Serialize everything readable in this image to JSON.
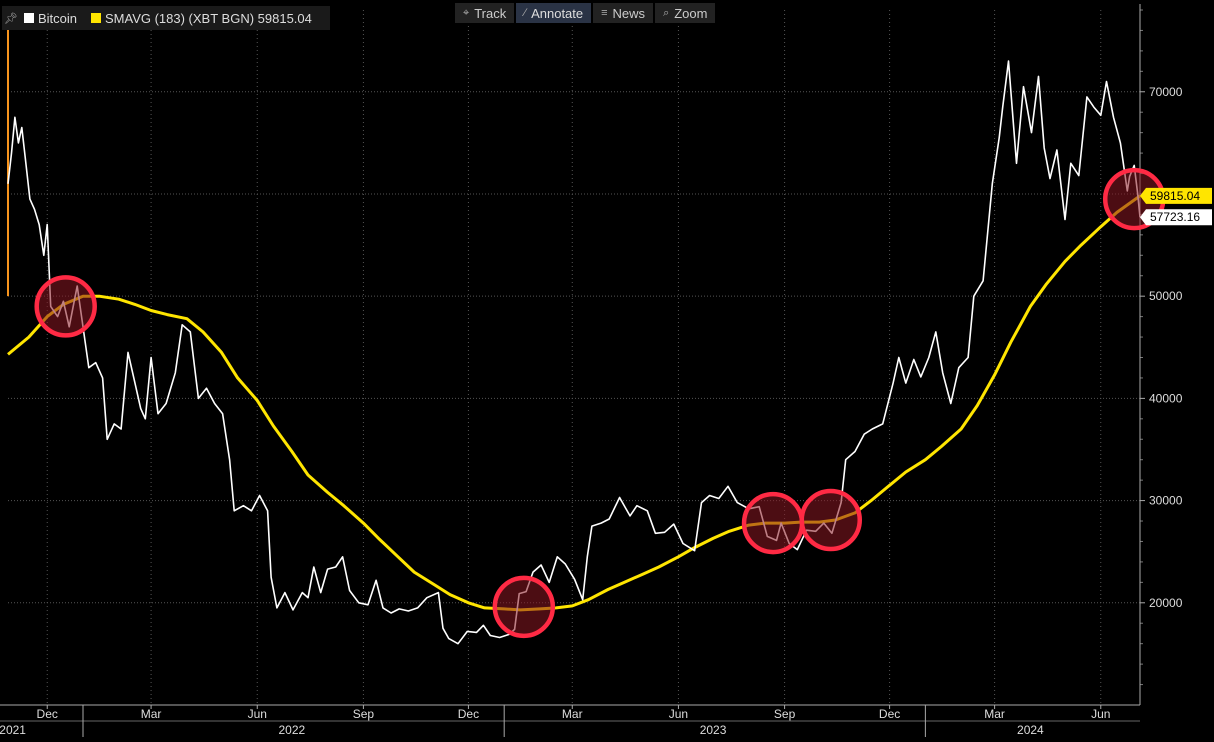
{
  "legend": {
    "series1_label": "Bitcoin",
    "series2_label": "SMAVG (183) (XBT BGN) 59815.04"
  },
  "toolbar": {
    "track": "Track",
    "annotate": "Annotate",
    "news": "News",
    "zoom": "Zoom"
  },
  "colors": {
    "background": "#000000",
    "price": "#ffffff",
    "sma": "#ffe500",
    "circle_stroke": "#ff2a44",
    "circle_fill": "#8a1822",
    "grid": "#555555"
  },
  "chart_data": {
    "type": "line",
    "y_range": [
      10000,
      78000
    ],
    "y_axis_ticks": [
      "20000",
      "30000",
      "40000",
      "50000",
      "60000",
      "70000"
    ],
    "x_range": [
      "2021-10-28",
      "2024-07-05"
    ],
    "x_month_labels": [
      {
        "date": "2021-12-01",
        "label": "Dec"
      },
      {
        "date": "2022-03-01",
        "label": "Mar"
      },
      {
        "date": "2022-06-01",
        "label": "Jun"
      },
      {
        "date": "2022-09-01",
        "label": "Sep"
      },
      {
        "date": "2022-12-01",
        "label": "Dec"
      },
      {
        "date": "2023-03-01",
        "label": "Mar"
      },
      {
        "date": "2023-06-01",
        "label": "Jun"
      },
      {
        "date": "2023-09-01",
        "label": "Sep"
      },
      {
        "date": "2023-12-01",
        "label": "Dec"
      },
      {
        "date": "2024-03-01",
        "label": "Mar"
      },
      {
        "date": "2024-06-01",
        "label": "Jun"
      }
    ],
    "x_year_labels": [
      {
        "date": "2021-11-01",
        "label": "2021"
      },
      {
        "date": "2022-07-01",
        "label": "2022"
      },
      {
        "date": "2023-07-01",
        "label": "2023"
      },
      {
        "date": "2024-04-01",
        "label": "2024"
      }
    ],
    "grid": true,
    "legend_placement": "top-left",
    "series": [
      {
        "name": "Bitcoin",
        "last_value_label": "57723.16",
        "points": [
          [
            "2021-10-28",
            61000
          ],
          [
            "2021-10-31",
            64000
          ],
          [
            "2021-11-03",
            67500
          ],
          [
            "2021-11-06",
            65000
          ],
          [
            "2021-11-09",
            66500
          ],
          [
            "2021-11-12",
            63500
          ],
          [
            "2021-11-16",
            59500
          ],
          [
            "2021-11-20",
            58500
          ],
          [
            "2021-11-24",
            57000
          ],
          [
            "2021-11-28",
            54000
          ],
          [
            "2021-12-01",
            57000
          ],
          [
            "2021-12-04",
            49000
          ],
          [
            "2021-12-10",
            48000
          ],
          [
            "2021-12-15",
            49500
          ],
          [
            "2021-12-20",
            47000
          ],
          [
            "2021-12-27",
            51000
          ],
          [
            "2022-01-01",
            47000
          ],
          [
            "2022-01-06",
            43000
          ],
          [
            "2022-01-12",
            43500
          ],
          [
            "2022-01-18",
            42000
          ],
          [
            "2022-01-22",
            36000
          ],
          [
            "2022-01-28",
            37500
          ],
          [
            "2022-02-03",
            37000
          ],
          [
            "2022-02-09",
            44500
          ],
          [
            "2022-02-14",
            42000
          ],
          [
            "2022-02-20",
            39000
          ],
          [
            "2022-02-24",
            38000
          ],
          [
            "2022-03-01",
            44000
          ],
          [
            "2022-03-07",
            38500
          ],
          [
            "2022-03-14",
            39500
          ],
          [
            "2022-03-22",
            42500
          ],
          [
            "2022-03-28",
            47200
          ],
          [
            "2022-04-04",
            46500
          ],
          [
            "2022-04-11",
            40000
          ],
          [
            "2022-04-18",
            41000
          ],
          [
            "2022-04-25",
            39500
          ],
          [
            "2022-05-02",
            38500
          ],
          [
            "2022-05-08",
            34000
          ],
          [
            "2022-05-12",
            29000
          ],
          [
            "2022-05-20",
            29500
          ],
          [
            "2022-05-27",
            29000
          ],
          [
            "2022-06-03",
            30500
          ],
          [
            "2022-06-10",
            29000
          ],
          [
            "2022-06-13",
            22500
          ],
          [
            "2022-06-18",
            19500
          ],
          [
            "2022-06-25",
            21000
          ],
          [
            "2022-07-02",
            19300
          ],
          [
            "2022-07-10",
            21000
          ],
          [
            "2022-07-15",
            20500
          ],
          [
            "2022-07-20",
            23500
          ],
          [
            "2022-07-26",
            21000
          ],
          [
            "2022-08-01",
            23300
          ],
          [
            "2022-08-08",
            23500
          ],
          [
            "2022-08-14",
            24500
          ],
          [
            "2022-08-20",
            21200
          ],
          [
            "2022-08-28",
            20000
          ],
          [
            "2022-09-05",
            19800
          ],
          [
            "2022-09-12",
            22200
          ],
          [
            "2022-09-18",
            19500
          ],
          [
            "2022-09-25",
            19000
          ],
          [
            "2022-10-02",
            19400
          ],
          [
            "2022-10-10",
            19200
          ],
          [
            "2022-10-18",
            19500
          ],
          [
            "2022-10-26",
            20500
          ],
          [
            "2022-11-05",
            21000
          ],
          [
            "2022-11-09",
            17500
          ],
          [
            "2022-11-14",
            16500
          ],
          [
            "2022-11-22",
            16000
          ],
          [
            "2022-11-30",
            17200
          ],
          [
            "2022-12-08",
            17100
          ],
          [
            "2022-12-14",
            17800
          ],
          [
            "2022-12-20",
            16800
          ],
          [
            "2022-12-28",
            16600
          ],
          [
            "2023-01-05",
            16900
          ],
          [
            "2023-01-10",
            17400
          ],
          [
            "2023-01-14",
            20900
          ],
          [
            "2023-01-20",
            21100
          ],
          [
            "2023-01-26",
            23000
          ],
          [
            "2023-02-02",
            23700
          ],
          [
            "2023-02-09",
            22000
          ],
          [
            "2023-02-16",
            24500
          ],
          [
            "2023-02-23",
            23800
          ],
          [
            "2023-03-03",
            22300
          ],
          [
            "2023-03-10",
            20300
          ],
          [
            "2023-03-14",
            24500
          ],
          [
            "2023-03-18",
            27500
          ],
          [
            "2023-03-26",
            27800
          ],
          [
            "2023-04-02",
            28200
          ],
          [
            "2023-04-11",
            30300
          ],
          [
            "2023-04-20",
            28500
          ],
          [
            "2023-04-26",
            29500
          ],
          [
            "2023-05-05",
            29000
          ],
          [
            "2023-05-12",
            26800
          ],
          [
            "2023-05-20",
            26900
          ],
          [
            "2023-05-28",
            27700
          ],
          [
            "2023-06-05",
            25800
          ],
          [
            "2023-06-15",
            25100
          ],
          [
            "2023-06-21",
            29800
          ],
          [
            "2023-06-28",
            30500
          ],
          [
            "2023-07-06",
            30200
          ],
          [
            "2023-07-14",
            31400
          ],
          [
            "2023-07-22",
            29800
          ],
          [
            "2023-08-01",
            29200
          ],
          [
            "2023-08-10",
            29400
          ],
          [
            "2023-08-17",
            26500
          ],
          [
            "2023-08-25",
            26100
          ],
          [
            "2023-08-29",
            27800
          ],
          [
            "2023-09-05",
            25800
          ],
          [
            "2023-09-12",
            25200
          ],
          [
            "2023-09-20",
            27100
          ],
          [
            "2023-09-28",
            27000
          ],
          [
            "2023-10-05",
            27800
          ],
          [
            "2023-10-12",
            26800
          ],
          [
            "2023-10-20",
            29800
          ],
          [
            "2023-10-24",
            34000
          ],
          [
            "2023-11-01",
            34800
          ],
          [
            "2023-11-09",
            36500
          ],
          [
            "2023-11-16",
            37000
          ],
          [
            "2023-11-25",
            37500
          ],
          [
            "2023-12-04",
            41500
          ],
          [
            "2023-12-09",
            44000
          ],
          [
            "2023-12-15",
            41500
          ],
          [
            "2023-12-22",
            43800
          ],
          [
            "2023-12-28",
            42100
          ],
          [
            "2024-01-04",
            44000
          ],
          [
            "2024-01-10",
            46500
          ],
          [
            "2024-01-16",
            42500
          ],
          [
            "2024-01-23",
            39500
          ],
          [
            "2024-01-30",
            43000
          ],
          [
            "2024-02-07",
            44000
          ],
          [
            "2024-02-12",
            50000
          ],
          [
            "2024-02-20",
            51500
          ],
          [
            "2024-02-28",
            61000
          ],
          [
            "2024-03-05",
            65500
          ],
          [
            "2024-03-08",
            68500
          ],
          [
            "2024-03-13",
            73000
          ],
          [
            "2024-03-20",
            63000
          ],
          [
            "2024-03-26",
            70500
          ],
          [
            "2024-04-02",
            66000
          ],
          [
            "2024-04-08",
            71500
          ],
          [
            "2024-04-13",
            64500
          ],
          [
            "2024-04-18",
            61500
          ],
          [
            "2024-04-24",
            64300
          ],
          [
            "2024-05-01",
            57500
          ],
          [
            "2024-05-06",
            63000
          ],
          [
            "2024-05-13",
            61800
          ],
          [
            "2024-05-20",
            69500
          ],
          [
            "2024-05-26",
            68500
          ],
          [
            "2024-06-01",
            67700
          ],
          [
            "2024-06-06",
            71000
          ],
          [
            "2024-06-12",
            67500
          ],
          [
            "2024-06-18",
            65000
          ],
          [
            "2024-06-24",
            60300
          ],
          [
            "2024-06-26",
            61700
          ],
          [
            "2024-06-30",
            62800
          ],
          [
            "2024-07-03",
            60000
          ],
          [
            "2024-07-05",
            57723
          ]
        ]
      },
      {
        "name": "SMAVG (183) (XBT BGN)",
        "last_value_label": "59815.04",
        "points": [
          [
            "2021-10-28",
            44300
          ],
          [
            "2021-11-15",
            46000
          ],
          [
            "2021-12-01",
            48000
          ],
          [
            "2021-12-15",
            49200
          ],
          [
            "2022-01-01",
            50000
          ],
          [
            "2022-01-15",
            50000
          ],
          [
            "2022-02-01",
            49700
          ],
          [
            "2022-02-15",
            49200
          ],
          [
            "2022-03-01",
            48600
          ],
          [
            "2022-03-15",
            48200
          ],
          [
            "2022-04-01",
            47800
          ],
          [
            "2022-04-15",
            46500
          ],
          [
            "2022-05-01",
            44500
          ],
          [
            "2022-05-15",
            42000
          ],
          [
            "2022-06-01",
            39800
          ],
          [
            "2022-06-15",
            37300
          ],
          [
            "2022-07-01",
            34800
          ],
          [
            "2022-07-15",
            32500
          ],
          [
            "2022-08-01",
            30800
          ],
          [
            "2022-08-15",
            29500
          ],
          [
            "2022-09-01",
            27800
          ],
          [
            "2022-09-15",
            26200
          ],
          [
            "2022-10-01",
            24500
          ],
          [
            "2022-10-15",
            23000
          ],
          [
            "2022-11-01",
            21800
          ],
          [
            "2022-11-15",
            20800
          ],
          [
            "2022-12-01",
            20000
          ],
          [
            "2022-12-15",
            19500
          ],
          [
            "2023-01-01",
            19400
          ],
          [
            "2023-01-15",
            19300
          ],
          [
            "2023-02-01",
            19400
          ],
          [
            "2023-02-15",
            19500
          ],
          [
            "2023-03-01",
            19700
          ],
          [
            "2023-03-15",
            20300
          ],
          [
            "2023-04-01",
            21300
          ],
          [
            "2023-04-15",
            22000
          ],
          [
            "2023-05-01",
            22800
          ],
          [
            "2023-05-15",
            23500
          ],
          [
            "2023-06-01",
            24500
          ],
          [
            "2023-06-15",
            25400
          ],
          [
            "2023-07-01",
            26300
          ],
          [
            "2023-07-15",
            27000
          ],
          [
            "2023-08-01",
            27600
          ],
          [
            "2023-08-15",
            27800
          ],
          [
            "2023-09-01",
            27800
          ],
          [
            "2023-09-15",
            27900
          ],
          [
            "2023-10-01",
            27900
          ],
          [
            "2023-10-15",
            28100
          ],
          [
            "2023-11-01",
            28800
          ],
          [
            "2023-11-15",
            30000
          ],
          [
            "2023-12-01",
            31500
          ],
          [
            "2023-12-15",
            32800
          ],
          [
            "2024-01-01",
            34000
          ],
          [
            "2024-01-15",
            35300
          ],
          [
            "2024-02-01",
            37000
          ],
          [
            "2024-02-15",
            39300
          ],
          [
            "2024-03-01",
            42300
          ],
          [
            "2024-03-15",
            45500
          ],
          [
            "2024-04-01",
            49000
          ],
          [
            "2024-04-15",
            51200
          ],
          [
            "2024-05-01",
            53400
          ],
          [
            "2024-05-15",
            55000
          ],
          [
            "2024-06-01",
            56800
          ],
          [
            "2024-06-15",
            58200
          ],
          [
            "2024-07-05",
            59815
          ]
        ]
      }
    ],
    "highlight_circles": [
      {
        "date": "2021-12-17",
        "value": 49000
      },
      {
        "date": "2023-01-18",
        "value": 19600
      },
      {
        "date": "2023-08-22",
        "value": 27800
      },
      {
        "date": "2023-10-11",
        "value": 28100
      },
      {
        "date": "2024-06-30",
        "value": 59500
      }
    ]
  }
}
